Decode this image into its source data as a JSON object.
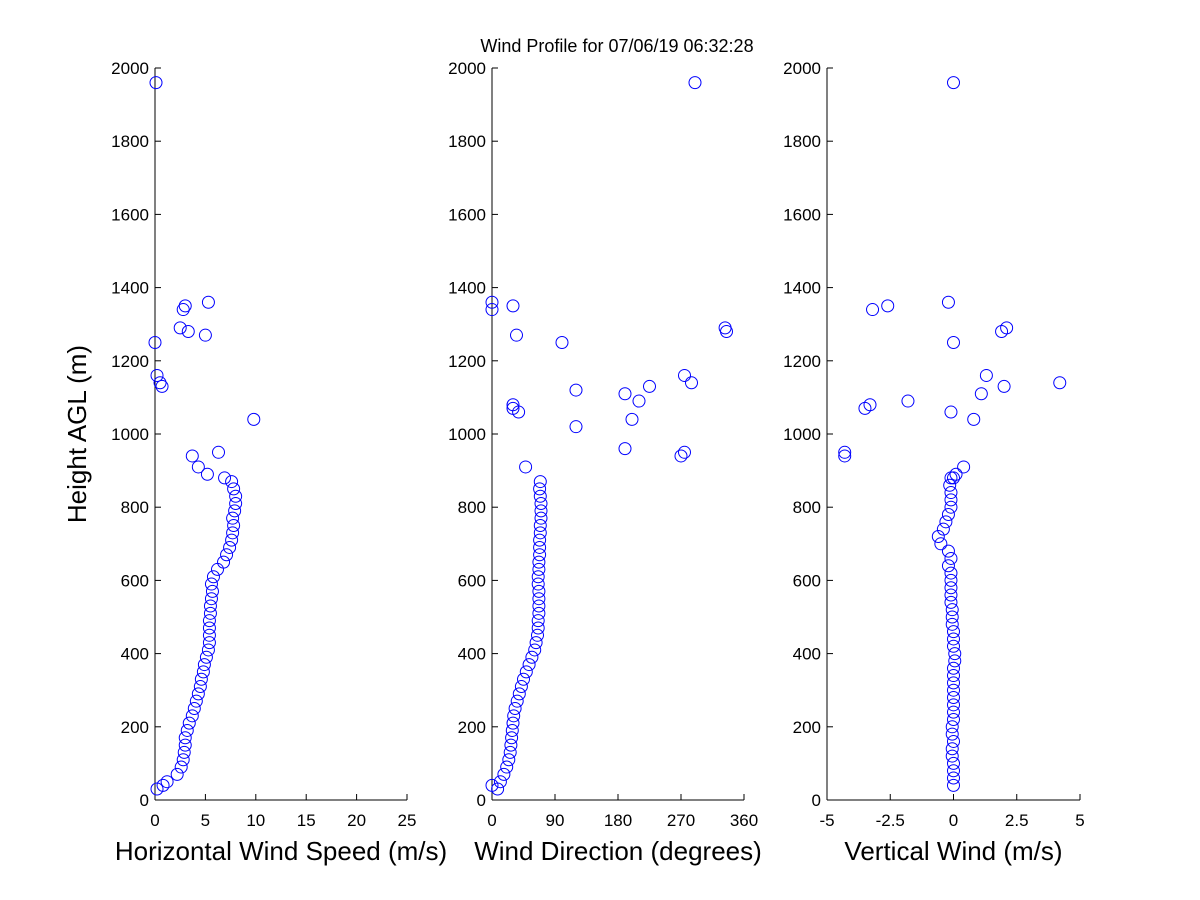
{
  "title": "Wind Profile for  07/06/19 06:32:28",
  "chart_data": [
    {
      "type": "scatter",
      "xlabel": "Horizontal Wind Speed (m/s)",
      "ylabel": "Height AGL (m)",
      "color": "#0000ff",
      "xlim": [
        0,
        25
      ],
      "xticks": [
        0,
        5,
        10,
        15,
        20,
        25
      ],
      "ylim": [
        0,
        2000
      ],
      "yticks": [
        0,
        200,
        400,
        600,
        800,
        1000,
        1200,
        1400,
        1600,
        1800,
        2000
      ],
      "x": [
        0.2,
        1.2,
        2.2,
        2.6,
        2.8,
        2.9,
        3.0,
        3.0,
        3.2,
        3.4,
        3.7,
        3.9,
        4.1,
        4.3,
        4.5,
        4.6,
        4.8,
        4.9,
        5.1,
        5.3,
        5.4,
        5.4,
        5.4,
        5.4,
        5.5,
        5.5,
        5.6,
        5.7,
        5.6,
        5.8,
        6.2,
        6.8,
        7.1,
        7.4,
        7.6,
        7.7,
        7.8,
        7.7,
        7.9,
        8.0,
        8.0,
        7.8,
        7.6,
        0.8,
        6.9,
        5.2,
        4.3,
        3.7,
        6.3,
        9.8,
        0.7,
        0.5,
        0.2,
        0.0,
        5.0,
        3.3,
        2.5,
        2.8,
        3.0,
        5.3,
        0.1
      ],
      "y": [
        30,
        50,
        70,
        90,
        110,
        130,
        150,
        170,
        190,
        210,
        230,
        250,
        270,
        290,
        310,
        330,
        350,
        370,
        390,
        410,
        430,
        450,
        470,
        490,
        510,
        530,
        550,
        570,
        590,
        610,
        630,
        650,
        670,
        690,
        710,
        730,
        750,
        770,
        790,
        810,
        830,
        850,
        870,
        40,
        880,
        890,
        910,
        940,
        950,
        1040,
        1130,
        1140,
        1160,
        1250,
        1270,
        1280,
        1290,
        1340,
        1350,
        1360,
        1960
      ]
    },
    {
      "type": "scatter",
      "xlabel": "Wind Direction (degrees)",
      "color": "#0000ff",
      "xlim": [
        0,
        360
      ],
      "xticks": [
        0,
        90,
        180,
        270,
        360
      ],
      "ylim": [
        0,
        2000
      ],
      "yticks": [
        0,
        200,
        400,
        600,
        800,
        1000,
        1200,
        1400,
        1600,
        1800,
        2000
      ],
      "x": [
        8,
        12,
        17,
        21,
        24,
        26,
        27,
        28,
        29,
        30,
        31,
        33,
        36,
        39,
        42,
        45,
        49,
        53,
        57,
        61,
        63,
        65,
        66,
        66,
        67,
        67,
        67,
        67,
        66,
        66,
        67,
        67,
        68,
        68,
        68,
        69,
        69,
        70,
        70,
        70,
        69,
        68,
        69,
        0,
        48,
        270,
        190,
        275,
        120,
        200,
        38,
        30,
        30,
        210,
        190,
        120,
        225,
        285,
        275,
        100,
        35,
        335,
        333,
        0,
        30,
        0,
        290
      ],
      "y": [
        30,
        50,
        70,
        90,
        110,
        130,
        150,
        170,
        190,
        210,
        230,
        250,
        270,
        290,
        310,
        330,
        350,
        370,
        390,
        410,
        430,
        450,
        470,
        490,
        510,
        530,
        550,
        570,
        590,
        610,
        630,
        650,
        670,
        690,
        710,
        730,
        750,
        770,
        790,
        810,
        830,
        850,
        870,
        40,
        910,
        940,
        960,
        950,
        1020,
        1040,
        1060,
        1070,
        1080,
        1090,
        1110,
        1120,
        1130,
        1140,
        1160,
        1250,
        1270,
        1280,
        1290,
        1340,
        1350,
        1360,
        1960
      ]
    },
    {
      "type": "scatter",
      "xlabel": "Vertical Wind (m/s)",
      "color": "#0000ff",
      "xlim": [
        -5,
        5
      ],
      "xticks": [
        -5,
        -2.5,
        0,
        2.5,
        5
      ],
      "ylim": [
        0,
        2000
      ],
      "yticks": [
        0,
        200,
        400,
        600,
        800,
        1000,
        1200,
        1400,
        1600,
        1800,
        2000
      ],
      "x": [
        0.0,
        0.0,
        0.0,
        0.0,
        -0.05,
        -0.05,
        0.0,
        -0.05,
        -0.05,
        0.0,
        0.0,
        0.0,
        0.0,
        0.0,
        0.0,
        0.0,
        0.0,
        0.05,
        0.05,
        0.0,
        0.0,
        0.0,
        -0.05,
        -0.05,
        -0.05,
        -0.1,
        -0.1,
        -0.1,
        -0.1,
        -0.1,
        -0.2,
        -0.1,
        -0.2,
        -0.5,
        -0.6,
        -0.4,
        -0.3,
        -0.2,
        -0.1,
        -0.1,
        -0.1,
        -0.15,
        0.0,
        -0.1,
        0.1,
        0.4,
        -4.3,
        -4.3,
        -0.1,
        -3.5,
        -3.3,
        -1.8,
        1.1,
        2.0,
        4.2,
        1.3,
        0.8,
        0.0,
        1.9,
        2.1,
        -3.2,
        -2.6,
        -0.2,
        0.0
      ],
      "y": [
        40,
        60,
        80,
        100,
        120,
        140,
        160,
        180,
        200,
        220,
        240,
        260,
        280,
        300,
        320,
        340,
        360,
        380,
        400,
        420,
        440,
        460,
        480,
        500,
        520,
        540,
        560,
        580,
        600,
        620,
        640,
        660,
        680,
        700,
        720,
        740,
        760,
        780,
        800,
        820,
        840,
        860,
        880,
        880,
        890,
        910,
        940,
        950,
        1060,
        1070,
        1080,
        1090,
        1110,
        1130,
        1140,
        1160,
        1040,
        1250,
        1280,
        1290,
        1340,
        1350,
        1360,
        1960
      ]
    }
  ]
}
